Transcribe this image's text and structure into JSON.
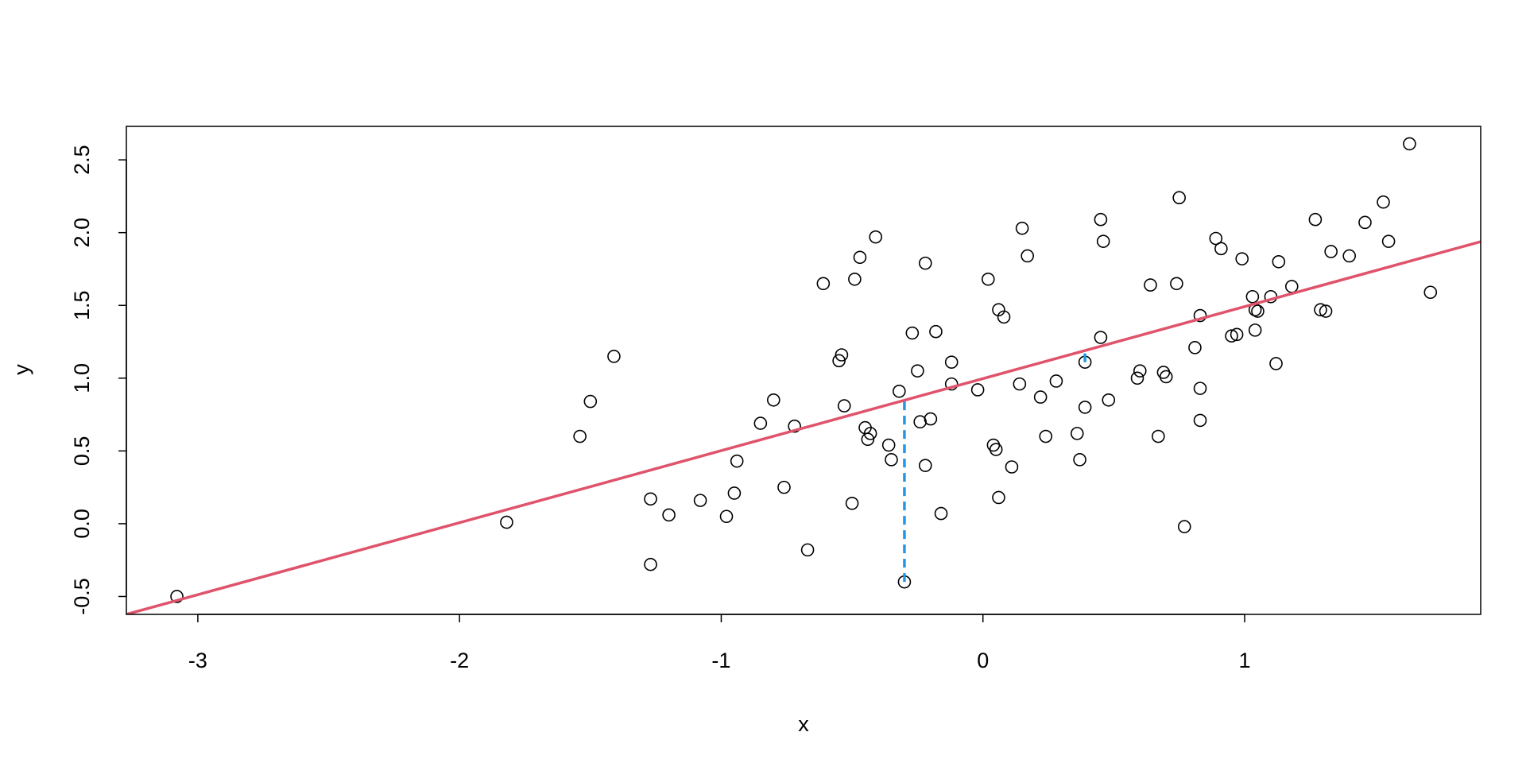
{
  "chart_data": {
    "type": "scatter",
    "xlabel": "x",
    "ylabel": "y",
    "xlim": [
      -3.273,
      1.902
    ],
    "ylim": [
      -0.623,
      2.73
    ],
    "xticks": [
      -3,
      -2,
      -1,
      0,
      1
    ],
    "yticks": [
      -0.5,
      {
        "value": 0,
        "label": "0.0"
      },
      0.5,
      {
        "value": 1,
        "label": "1.0"
      },
      1.5,
      {
        "value": 2,
        "label": "2.0"
      },
      2.5
    ],
    "point_color": "#000000",
    "x": [
      -3.08,
      -1.82,
      -1.54,
      -1.5,
      -1.41,
      -1.27,
      -1.27,
      -1.2,
      -1.08,
      -0.98,
      -0.95,
      -0.94,
      -0.85,
      -0.8,
      -0.76,
      -0.72,
      -0.67,
      -0.61,
      -0.55,
      -0.54,
      -0.53,
      -0.5,
      -0.49,
      -0.47,
      -0.45,
      -0.44,
      -0.43,
      -0.41,
      -0.36,
      -0.35,
      -0.32,
      -0.3,
      -0.27,
      -0.25,
      -0.24,
      -0.22,
      -0.22,
      -0.2,
      -0.18,
      -0.16,
      -0.12,
      -0.12,
      -0.02,
      0.02,
      0.04,
      0.05,
      0.06,
      0.06,
      0.08,
      0.11,
      0.14,
      0.15,
      0.17,
      0.22,
      0.24,
      0.28,
      0.36,
      0.37,
      0.39,
      0.39,
      0.45,
      0.45,
      0.46,
      0.48,
      0.59,
      0.6,
      0.64,
      0.67,
      0.69,
      0.7,
      0.74,
      0.75,
      0.77,
      0.81,
      0.83,
      0.83,
      0.83,
      0.89,
      0.91,
      0.95,
      0.97,
      0.99,
      1.03,
      1.04,
      1.04,
      1.05,
      1.1,
      1.12,
      1.13,
      1.18,
      1.27,
      1.29,
      1.31,
      1.33,
      1.4,
      1.46,
      1.53,
      1.55,
      1.63,
      1.71
    ],
    "y": [
      -0.5,
      0.01,
      0.6,
      0.84,
      1.15,
      0.17,
      -0.28,
      0.06,
      0.16,
      0.05,
      0.21,
      0.43,
      0.69,
      0.85,
      0.25,
      0.67,
      -0.18,
      1.65,
      1.12,
      1.16,
      0.81,
      0.14,
      1.68,
      1.83,
      0.66,
      0.58,
      0.62,
      1.97,
      0.54,
      0.44,
      0.91,
      -0.4,
      1.31,
      1.05,
      0.7,
      1.79,
      0.4,
      0.72,
      1.32,
      0.07,
      1.11,
      0.96,
      0.92,
      1.68,
      0.54,
      0.51,
      0.18,
      1.47,
      1.42,
      0.39,
      0.96,
      2.03,
      1.84,
      0.87,
      0.6,
      0.98,
      0.62,
      0.44,
      0.8,
      1.11,
      1.28,
      2.09,
      1.94,
      0.85,
      1.0,
      1.05,
      1.64,
      0.6,
      1.04,
      1.01,
      1.65,
      2.24,
      -0.02,
      1.21,
      1.43,
      0.71,
      0.93,
      1.96,
      1.89,
      1.29,
      1.3,
      1.82,
      1.56,
      1.33,
      1.47,
      1.46,
      1.56,
      1.1,
      1.8,
      1.63,
      2.09,
      1.47,
      1.46,
      1.87,
      1.84,
      2.07,
      2.21,
      1.94,
      2.61,
      1.59
    ],
    "fit_line": {
      "color": "#DF536B",
      "x": [
        -3.273,
        1.902
      ],
      "y": [
        -0.623,
        1.938
      ]
    },
    "residuals": {
      "color": "#2297E6",
      "segments": [
        {
          "x": -0.3,
          "y": [
            -0.4,
            0.85
          ]
        },
        {
          "x": 0.39,
          "y": [
            1.11,
            1.19
          ]
        }
      ]
    }
  }
}
